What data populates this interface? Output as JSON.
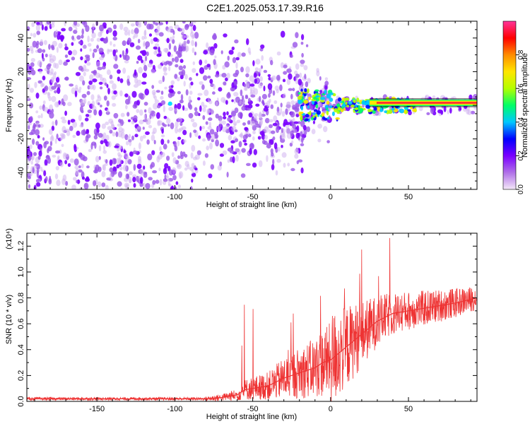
{
  "title": "C2E1.2025.053.17.39.R16",
  "chart_data": [
    {
      "type": "heatmap",
      "xlabel": "Height of straight line (km)",
      "ylabel": "Frequency (Hz)",
      "xlim": [
        -195,
        94
      ],
      "ylim": [
        -50,
        50
      ],
      "xticks": [
        -150,
        -100,
        -50,
        0,
        50
      ],
      "yticks": [
        -40,
        -20,
        0,
        20,
        40
      ],
      "grid": false,
      "colorbar": {
        "label": "Normalized spectral amplitude",
        "range": [
          0,
          1
        ],
        "ticks": [
          "0.0",
          "0.2",
          "0.4",
          "0.6",
          "0.8"
        ],
        "colors": [
          "#f4e8f8",
          "#b070e8",
          "#7a00ff",
          "#0000ff",
          "#00c8ff",
          "#00ff66",
          "#b4ff00",
          "#ffe600",
          "#ff8c00",
          "#ff0000",
          "#ff3399"
        ]
      },
      "tone_frequency_hz": 1.5,
      "tone_start_km": 25
    },
    {
      "type": "line",
      "xlabel": "Height of straight line (km)",
      "ylabel": "SNR (10 * v/v)",
      "y_multiplier": "(x10⁴)",
      "xlim": [
        -195,
        94
      ],
      "ylim": [
        0,
        1.3
      ],
      "xticks": [
        -150,
        -100,
        -50,
        0,
        50
      ],
      "yticks": [
        0.0,
        0.2,
        0.4,
        0.6,
        0.8,
        1.0,
        1.2
      ],
      "grid": false,
      "series": [
        {
          "color": "#ee3333",
          "x": [
            -195,
            -150,
            -100,
            -80,
            -70,
            -60,
            -55,
            -50,
            -40,
            -30,
            -20,
            -10,
            -5,
            0,
            10,
            20,
            30,
            40,
            50,
            60,
            70,
            80,
            94
          ],
          "y": [
            0.02,
            0.02,
            0.02,
            0.02,
            0.03,
            0.05,
            0.09,
            0.1,
            0.12,
            0.18,
            0.22,
            0.26,
            0.3,
            0.32,
            0.42,
            0.52,
            0.62,
            0.68,
            0.7,
            0.72,
            0.74,
            0.76,
            0.8
          ]
        }
      ]
    }
  ]
}
